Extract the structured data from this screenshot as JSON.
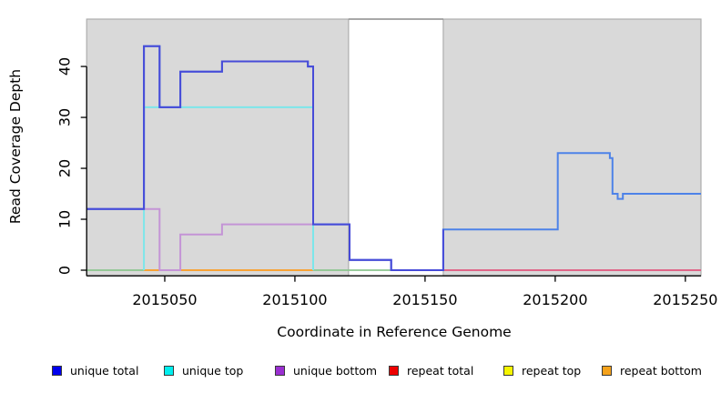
{
  "chart_data": {
    "type": "line",
    "subtype": "step-coverage-plot",
    "title": "",
    "xlabel": "Coordinate in Reference Genome",
    "ylabel": "Read Coverage Depth",
    "xlim": [
      2015020,
      2015256
    ],
    "ylim": [
      0,
      49.3
    ],
    "grid": false,
    "x_ticks": [
      "2015050",
      "2015100",
      "2015150",
      "2015200",
      "2015250"
    ],
    "x_tick_values": [
      2015050,
      2015100,
      2015150,
      2015200,
      2015250
    ],
    "y_ticks": [
      "0",
      "10",
      "20",
      "30",
      "40"
    ],
    "y_tick_values": [
      0,
      10,
      20,
      30,
      40
    ],
    "shaded_regions": [
      {
        "name": "unique-region-left",
        "from": 2015020,
        "to": 2015120.6,
        "fill": "#D9D9D9",
        "border": "#ADADAD"
      },
      {
        "name": "unique-region-right",
        "from": 2015157,
        "to": 2015256,
        "fill": "#D9D9D9",
        "border": "#ADADAD"
      }
    ],
    "unshaded_gap": {
      "name": "repeat-region-gap",
      "from": 2015120.6,
      "to": 2015157,
      "top_line_color": "#8C8C8C"
    },
    "series": [
      {
        "name": "unique bottom",
        "line_color": "#C494D6",
        "steps": [
          [
            2015020,
            12
          ],
          [
            2015048,
            0
          ],
          [
            2015056,
            7
          ],
          [
            2015072,
            9
          ],
          [
            2015121,
            2
          ],
          [
            2015137,
            0
          ]
        ],
        "x_end": 2015157
      },
      {
        "name": "unique top",
        "line_color": "#7CE6EA",
        "steps": [
          [
            2015042,
            0
          ],
          [
            2015042,
            32
          ],
          [
            2015107,
            0
          ]
        ],
        "x_end": 2015107
      },
      {
        "name": "unique total",
        "line_color": "#474BD8",
        "line_color_right": "#4D82E8",
        "split_at": 2015157,
        "steps": [
          [
            2015020,
            12
          ],
          [
            2015042,
            44
          ],
          [
            2015048,
            32
          ],
          [
            2015056,
            39
          ],
          [
            2015072,
            41
          ],
          [
            2015105,
            40
          ],
          [
            2015107,
            9
          ],
          [
            2015121,
            2
          ],
          [
            2015137,
            0
          ],
          [
            2015157,
            8
          ],
          [
            2015201,
            23
          ],
          [
            2015221,
            22
          ],
          [
            2015222,
            15
          ],
          [
            2015224,
            14
          ],
          [
            2015226,
            15
          ]
        ],
        "x_end": 2015256
      }
    ],
    "baseline_segments": [
      {
        "name": "baseline-green-left",
        "from": 2015020,
        "to": 2015042,
        "value": 0,
        "color": "#8CC68F"
      },
      {
        "name": "baseline-orange",
        "from": 2015042,
        "to": 2015107,
        "value": 0,
        "color": "#FC9B1F"
      },
      {
        "name": "baseline-green-mid",
        "from": 2015107,
        "to": 2015137,
        "value": 0,
        "color": "#8CC68F"
      },
      {
        "name": "baseline-crimson-right",
        "from": 2015157,
        "to": 2015256,
        "value": 0,
        "color": "#E0557C"
      }
    ],
    "legend": [
      {
        "label": "unique total",
        "color": "#0000EE"
      },
      {
        "label": "unique top",
        "color": "#00EEEE"
      },
      {
        "label": "unique bottom",
        "color": "#9A2FD1"
      },
      {
        "label": "repeat total",
        "color": "#EE0000"
      },
      {
        "label": "repeat top",
        "color": "#F5F500"
      },
      {
        "label": "repeat bottom",
        "color": "#F5A21B"
      }
    ],
    "legend_position": "bottom",
    "axis_color": "#000000"
  }
}
